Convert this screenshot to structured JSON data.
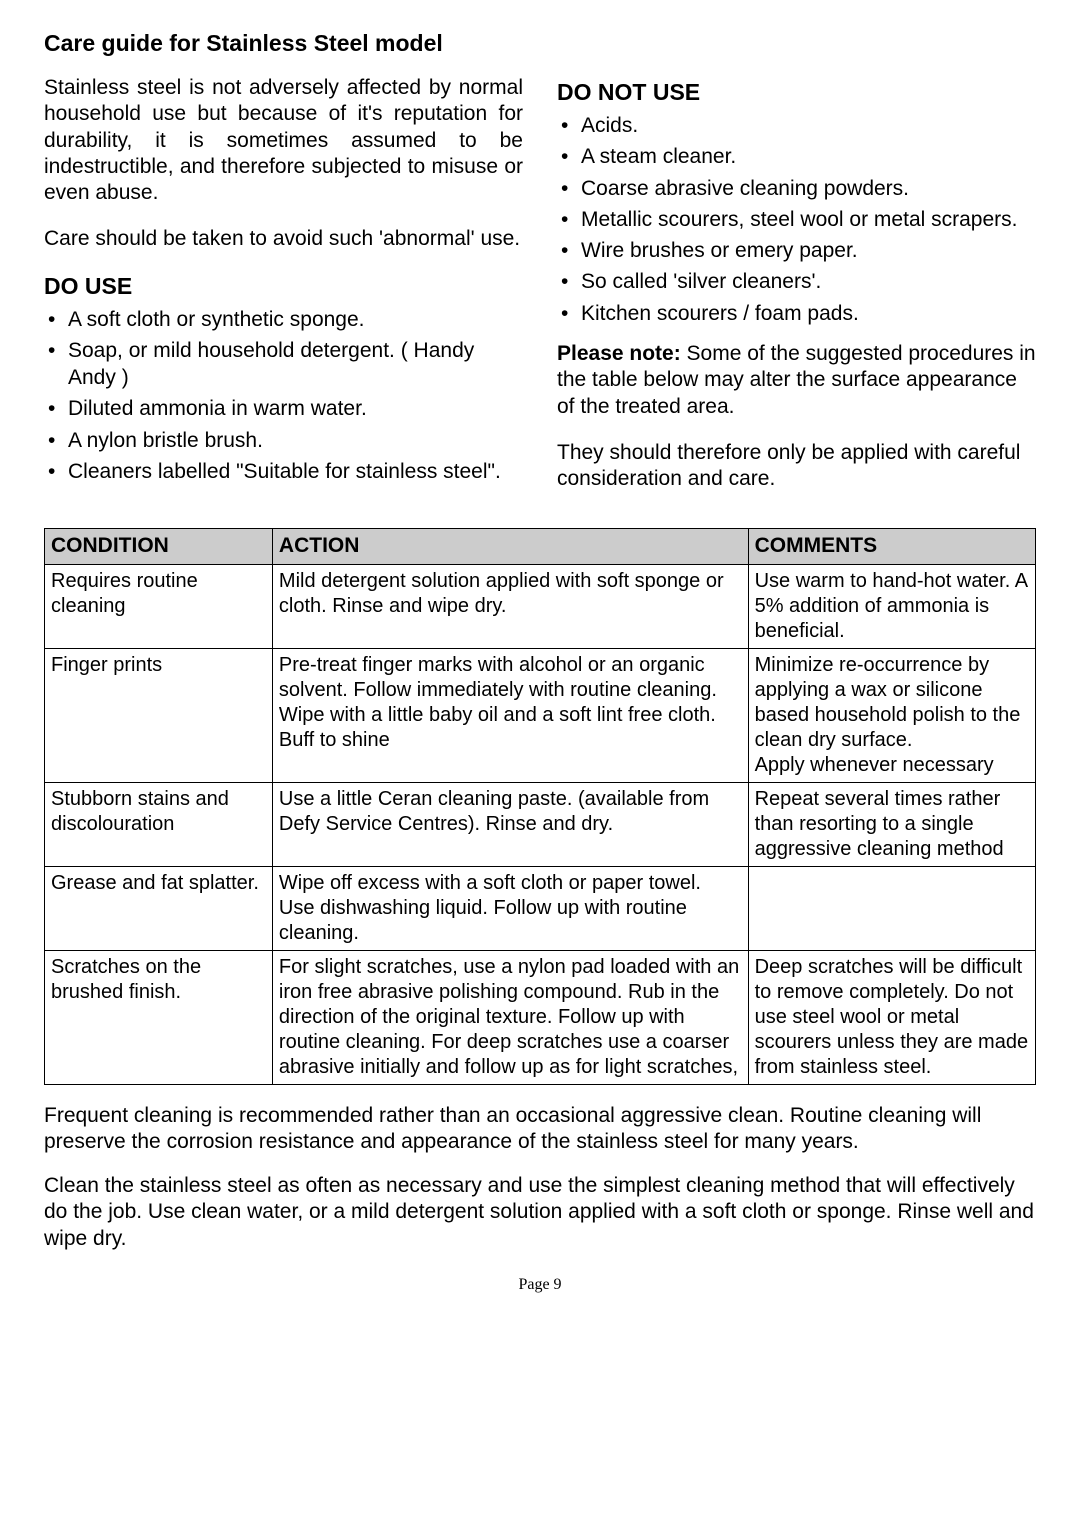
{
  "page_title": "Care guide for Stainless Steel model",
  "left_column": {
    "intro1": "Stainless steel is not adversely affected by normal household use but because of it's reputation for durability, it is sometimes assumed to be indestructible, and therefore subjected to misuse or even abuse.",
    "intro2": "Care should be taken to avoid such 'abnormal' use.",
    "do_use_heading": "DO USE",
    "do_use_items": [
      "A soft cloth or synthetic sponge.",
      "Soap, or mild household detergent. ( Handy Andy )",
      "Diluted ammonia in warm water.",
      "A nylon bristle brush.",
      "Cleaners labelled \"Suitable for stainless steel\"."
    ]
  },
  "right_column": {
    "do_not_use_heading": "DO NOT USE",
    "do_not_use_items": [
      "Acids.",
      "A steam cleaner.",
      "Coarse abrasive cleaning powders.",
      "Metallic scourers, steel wool or metal scrapers.",
      "Wire brushes or emery paper.",
      "So called 'silver cleaners'.",
      "Kitchen scourers / foam pads."
    ],
    "note_bold": "Please note:",
    "note_rest": " Some of the suggested procedures in the table below may alter the surface appearance of the treated area.",
    "note2": "They should therefore only be applied with careful consideration and care."
  },
  "table": {
    "headers": {
      "c1": "CONDITION",
      "c2": "ACTION",
      "c3": "COMMENTS"
    },
    "row1": {
      "c1": "Requires routine cleaning",
      "c2": "Mild detergent solution applied with soft sponge or cloth.  Rinse and wipe dry.",
      "c3": "Use warm to hand-hot water. A 5% addition of ammonia is beneficial."
    },
    "row2": {
      "c1": "Finger prints",
      "c2": "Pre-treat finger marks with alcohol or an organic solvent.  Follow immediately with routine cleaning.  Wipe with a little baby oil and a soft lint free cloth. Buff to shine",
      "c3": "Minimize re-occurrence by applying a wax or silicone based household polish to the clean dry surface.\nApply whenever necessary"
    },
    "row3": {
      "c1": "Stubborn stains and discolouration",
      "c2": "Use a little Ceran cleaning paste. (available from Defy Service  Centres). Rinse and dry.",
      "c3": "Repeat several times rather than resorting to  a single aggressive cleaning method"
    },
    "row4": {
      "c1": "Grease and fat splatter.",
      "c2": "Wipe off excess with a soft cloth or paper towel. Use dishwashing liquid. Follow up with routine cleaning.",
      "c3": ""
    },
    "row5": {
      "c1": "Scratches on the brushed finish.",
      "c2": "For slight scratches, use a nylon pad loaded with an iron free abrasive polishing compound. Rub in the direction of the original texture. Follow up with routine cleaning. For deep scratches use a coarser abrasive initially and follow up as for light scratches,",
      "c3": "Deep scratches will be difficult to remove completely. Do not use steel wool or metal scourers unless they are made from stainless steel."
    }
  },
  "footer1": "Frequent cleaning is recommended rather than an occasional aggressive clean. Routine cleaning will preserve the corrosion resistance and appearance of the stainless steel for many years.",
  "footer2": "Clean the stainless steel as often as necessary and use the simplest cleaning method that will effectively do the job. Use clean water, or a mild detergent solution applied with a soft cloth or sponge. Rinse well and wipe dry.",
  "page_number": "Page 9"
}
